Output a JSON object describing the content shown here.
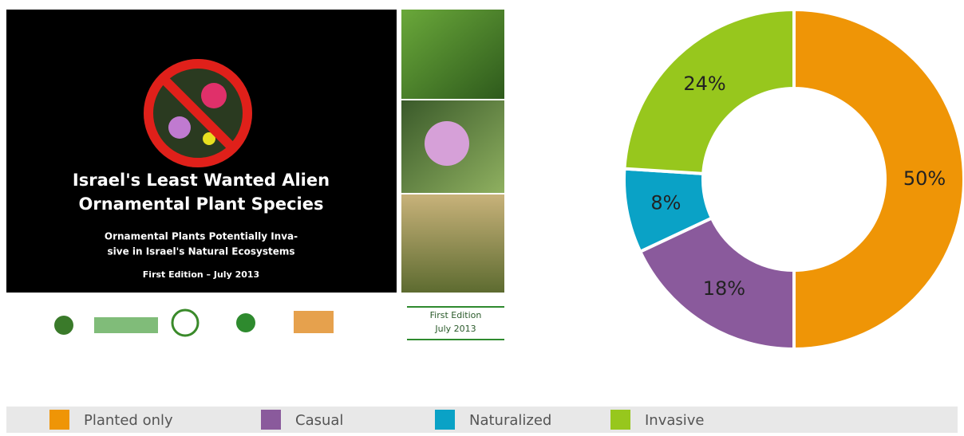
{
  "cover": {
    "title_lines": [
      "Israel's Least Wanted Alien",
      "Ornamental Plant Species"
    ],
    "subtitle_lines": [
      "Ornamental Plants Potentially Inva-",
      "sive in Israel's Natural Ecosystems"
    ],
    "edition": "First Edition – July 2013",
    "badge_lines": [
      "First Edition",
      "July 2013"
    ]
  },
  "chart_data": {
    "type": "donut",
    "categories": [
      "Planted only",
      "Casual",
      "Naturalized",
      "Invasive"
    ],
    "values": [
      50,
      18,
      8,
      24
    ],
    "value_labels": [
      "50%",
      "18%",
      "8%",
      "24%"
    ],
    "colors": [
      "#ef9506",
      "#8a5a9c",
      "#0aa2c6",
      "#97c71d"
    ],
    "legend": "bottom"
  }
}
